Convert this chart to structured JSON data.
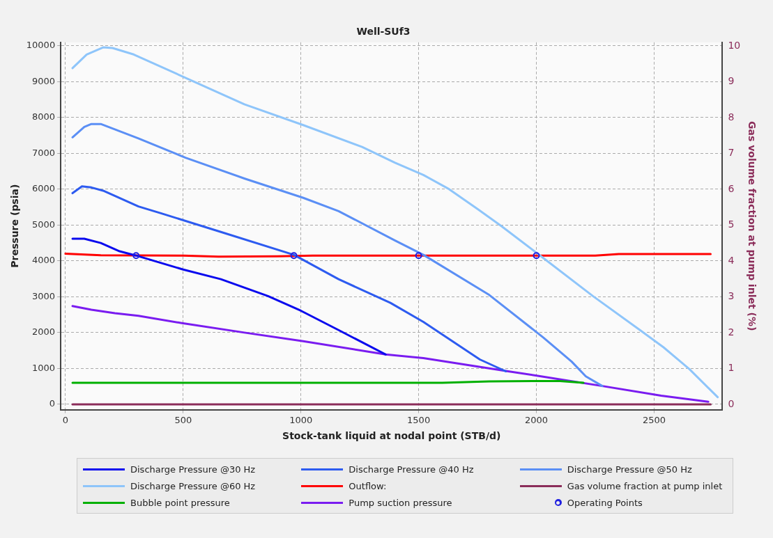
{
  "chart_data": {
    "type": "line",
    "title": "Well-SUf3",
    "xlabel": "Stock-tank liquid at nodal point (STB/d)",
    "ylabel": "Pressure (psia)",
    "y2label": "Gas volume fraction at pump inlet (%)",
    "xlim": [
      -20,
      2790
    ],
    "xticks": [
      0,
      500,
      1000,
      1500,
      2000,
      2500
    ],
    "ylim": [
      -150,
      10100
    ],
    "yticks": [
      0,
      1000,
      2000,
      3000,
      4000,
      5000,
      6000,
      7000,
      8000,
      9000,
      10000
    ],
    "y2lim": [
      -0.15,
      10.1
    ],
    "y2ticks": [
      0,
      1,
      2,
      3,
      4,
      5,
      6,
      7,
      8,
      9,
      10
    ],
    "grid": true,
    "legend": "bottom",
    "marker": "none",
    "line_style": "solid",
    "series": [
      {
        "name": "Discharge Pressure @30 Hz",
        "color": "#0a0aee",
        "x": [
          30,
          80,
          150,
          230,
          300,
          500,
          660,
          860,
          1000,
          1160,
          1360
        ],
        "values": [
          4620,
          4620,
          4500,
          4270,
          4150,
          3760,
          3490,
          3020,
          2610,
          2070,
          1390
        ]
      },
      {
        "name": "Discharge Pressure @40 Hz",
        "color": "#2d5bf0",
        "x": [
          30,
          70,
          110,
          160,
          310,
          410,
          660,
          970,
          1160,
          1380,
          1520,
          1760,
          1870
        ],
        "values": [
          5890,
          6080,
          6050,
          5960,
          5520,
          5320,
          4810,
          4170,
          3490,
          2830,
          2300,
          1250,
          920
        ]
      },
      {
        "name": "Discharge Pressure @50 Hz",
        "color": "#5b8ff5",
        "x": [
          30,
          80,
          110,
          150,
          310,
          510,
          760,
          1010,
          1160,
          1400,
          1520,
          1800,
          2030,
          2150,
          2210,
          2280
        ],
        "values": [
          7450,
          7740,
          7820,
          7820,
          7420,
          6880,
          6300,
          5760,
          5390,
          4570,
          4170,
          3050,
          1860,
          1190,
          780,
          510
        ]
      },
      {
        "name": "Discharge Pressure @60 Hz",
        "color": "#8ec5fa",
        "x": [
          30,
          90,
          160,
          200,
          290,
          510,
          760,
          1010,
          1260,
          1400,
          1520,
          1630,
          1750,
          1850,
          2020,
          2240,
          2440,
          2540,
          2650,
          2770
        ],
        "values": [
          9380,
          9760,
          9960,
          9940,
          9760,
          9110,
          8370,
          7790,
          7180,
          6740,
          6400,
          6000,
          5450,
          4980,
          4130,
          3020,
          2070,
          1590,
          980,
          200
        ]
      },
      {
        "name": "Outflow:",
        "color": "#ff0000",
        "x": [
          0,
          150,
          500,
          650,
          900,
          1050,
          2250,
          2350,
          2740
        ],
        "values": [
          4200,
          4160,
          4150,
          4120,
          4130,
          4150,
          4150,
          4190,
          4190
        ]
      },
      {
        "name": "Gas volume fraction at pump inlet",
        "color": "#8b2d5a",
        "axis": "y2",
        "x": [
          30,
          2740
        ],
        "values": [
          0,
          0
        ]
      },
      {
        "name": "Bubble point pressure",
        "color": "#00b000",
        "x": [
          30,
          1600,
          1800,
          2100,
          2200
        ],
        "values": [
          600,
          600,
          640,
          650,
          600
        ]
      },
      {
        "name": "Pump suction pressure",
        "color": "#7a1cf0",
        "x": [
          30,
          110,
          210,
          310,
          490,
          760,
          1010,
          1360,
          1520,
          1880,
          2020,
          2280,
          2530,
          2730
        ],
        "values": [
          2740,
          2640,
          2540,
          2470,
          2270,
          2000,
          1760,
          1390,
          1290,
          920,
          780,
          510,
          240,
          70
        ]
      },
      {
        "name": "Operating Points",
        "color": "#2020e0",
        "type": "scatter",
        "marker": "circle",
        "x": [
          300,
          970,
          1500,
          2000
        ],
        "values": [
          4150,
          4150,
          4150,
          4150
        ]
      }
    ]
  }
}
